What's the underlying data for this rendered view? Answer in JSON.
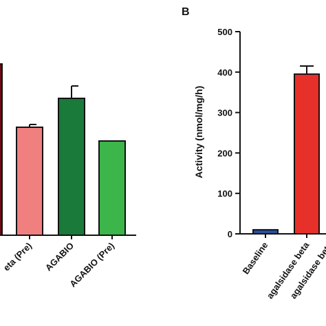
{
  "chart_data": [
    {
      "type": "bar",
      "panel_label": "",
      "categories": [
        "eta (Pre)",
        "AGABIO",
        "AGABIO (Pre)"
      ],
      "values": [
        null,
        null,
        null
      ],
      "errors": [
        null,
        null,
        null
      ],
      "colors": [
        "#f08080",
        "#1a7a3a",
        "#3cb54a"
      ],
      "partial_left_bar_color": "#6b0a14",
      "title": "",
      "xlabel": "",
      "ylabel": ""
    },
    {
      "type": "bar",
      "panel_label": "B",
      "categories": [
        "Baseline",
        "agalsidase beta",
        "agalsidase beta"
      ],
      "values": [
        10,
        395,
        null
      ],
      "errors": [
        0,
        20,
        null
      ],
      "colors": [
        "#2a4f9c",
        "#e8302a",
        "#e8302a"
      ],
      "title": "",
      "xlabel": "",
      "ylabel": "Activity (nmol/mg/h)",
      "ylim": [
        0,
        500
      ],
      "yticks": [
        "0",
        "100",
        "200",
        "300",
        "400",
        "500"
      ]
    }
  ]
}
